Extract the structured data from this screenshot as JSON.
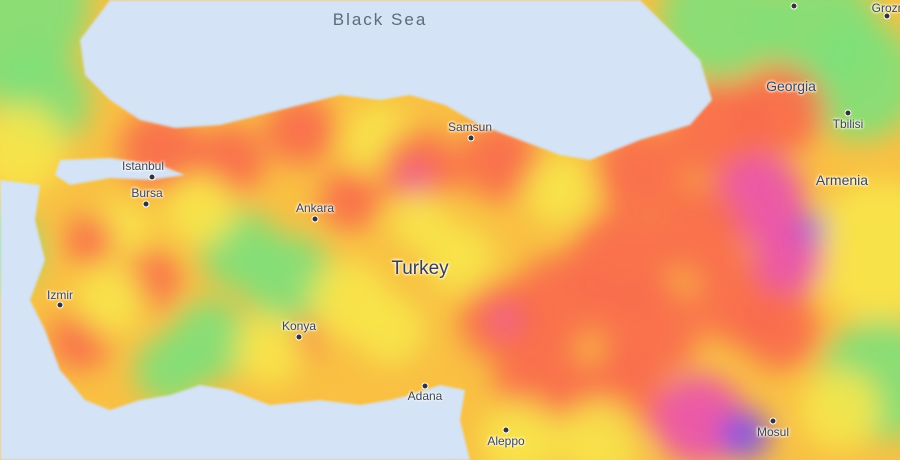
{
  "map": {
    "type": "heatmap",
    "colors": {
      "sea": "#d4e3f5",
      "low": "#7ee07a",
      "mid": "#f7e64a",
      "high": "#f86a4e",
      "very_high": "#e94fb0",
      "extreme": "#7b4ff0"
    },
    "water_labels": [
      {
        "name": "Black Sea"
      }
    ],
    "country_labels": [
      {
        "name": "Turkey"
      },
      {
        "name": "Georgia"
      },
      {
        "name": "Armenia"
      }
    ],
    "cities": [
      {
        "name": "Samsun"
      },
      {
        "name": "Istanbul"
      },
      {
        "name": "Bursa"
      },
      {
        "name": "Ankara"
      },
      {
        "name": "Izmir"
      },
      {
        "name": "Konya"
      },
      {
        "name": "Adana"
      },
      {
        "name": "Aleppo"
      },
      {
        "name": "Mosul"
      },
      {
        "name": "Tbilisi"
      },
      {
        "name": "Grozn"
      }
    ]
  }
}
